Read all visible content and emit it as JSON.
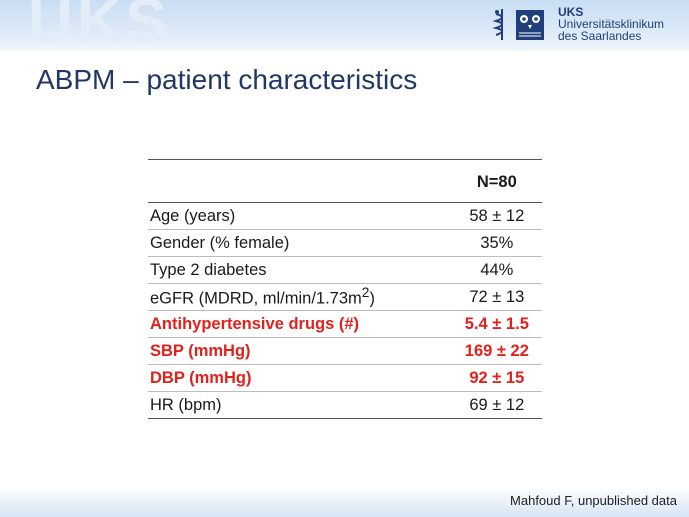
{
  "watermark": "UKS",
  "logo": {
    "abbr": "UKS",
    "line1": "Universitätsklinikum",
    "line2": "des Saarlandes"
  },
  "title": "ABPM – patient characteristics",
  "table": {
    "header": {
      "label": "",
      "value": "N=80"
    },
    "rows": [
      {
        "label": "Age (years)",
        "value": "58 ± 12"
      },
      {
        "label": "Gender (% female)",
        "value": "35%"
      },
      {
        "label": "Type 2 diabetes",
        "value": "44%"
      },
      {
        "label": "eGFR (MDRD, ml/min/1.73m",
        "label_sup": "2",
        "label_end": ")",
        "value": "72 ± 13"
      },
      {
        "label": "Antihypertensive drugs (#)",
        "value": "5.4 ± 1.5"
      },
      {
        "label": "SBP (mmHg)",
        "value": "169 ± 22"
      },
      {
        "label": "DBP (mmHg)",
        "value": "92 ± 15"
      },
      {
        "label": "HR (bpm)",
        "value": "69 ± 12"
      }
    ]
  },
  "source": "Mahfoud F, unpublished data",
  "colors": {
    "title": "#1f3864",
    "highlight": "#e3211c",
    "logo": "#1f3f7a"
  }
}
